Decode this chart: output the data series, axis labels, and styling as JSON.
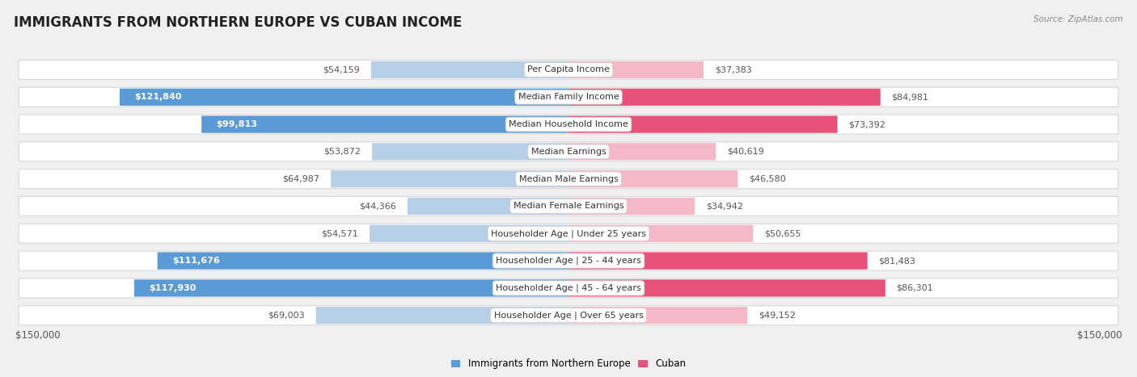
{
  "title": "IMMIGRANTS FROM NORTHERN EUROPE VS CUBAN INCOME",
  "source": "Source: ZipAtlas.com",
  "categories": [
    "Per Capita Income",
    "Median Family Income",
    "Median Household Income",
    "Median Earnings",
    "Median Male Earnings",
    "Median Female Earnings",
    "Householder Age | Under 25 years",
    "Householder Age | 25 - 44 years",
    "Householder Age | 45 - 64 years",
    "Householder Age | Over 65 years"
  ],
  "north_europe_values": [
    54159,
    121840,
    99813,
    53872,
    64987,
    44366,
    54571,
    111676,
    117930,
    69003
  ],
  "cuban_values": [
    37383,
    84981,
    73392,
    40619,
    46580,
    34942,
    50655,
    81483,
    86301,
    49152
  ],
  "north_europe_labels": [
    "$54,159",
    "$121,840",
    "$99,813",
    "$53,872",
    "$64,987",
    "$44,366",
    "$54,571",
    "$111,676",
    "$117,930",
    "$69,003"
  ],
  "cuban_labels": [
    "$37,383",
    "$84,981",
    "$73,392",
    "$40,619",
    "$46,580",
    "$34,942",
    "$50,655",
    "$81,483",
    "$86,301",
    "$49,152"
  ],
  "max_value": 150000,
  "blue_light": "#b8cfe8",
  "blue_dark": "#5b9bd5",
  "pink_light": "#f4b8c8",
  "pink_dark": "#e8527a",
  "background_color": "#f0f0f0",
  "row_bg_color": "#ffffff",
  "row_border_color": "#d8d8d8",
  "inside_label_threshold_blue": 75000,
  "inside_label_threshold_pink": 55000,
  "title_fontsize": 12,
  "label_fontsize": 8,
  "category_fontsize": 8,
  "legend_blue": "Immigrants from Northern Europe",
  "legend_pink": "Cuban",
  "axis_label": "$150,000"
}
